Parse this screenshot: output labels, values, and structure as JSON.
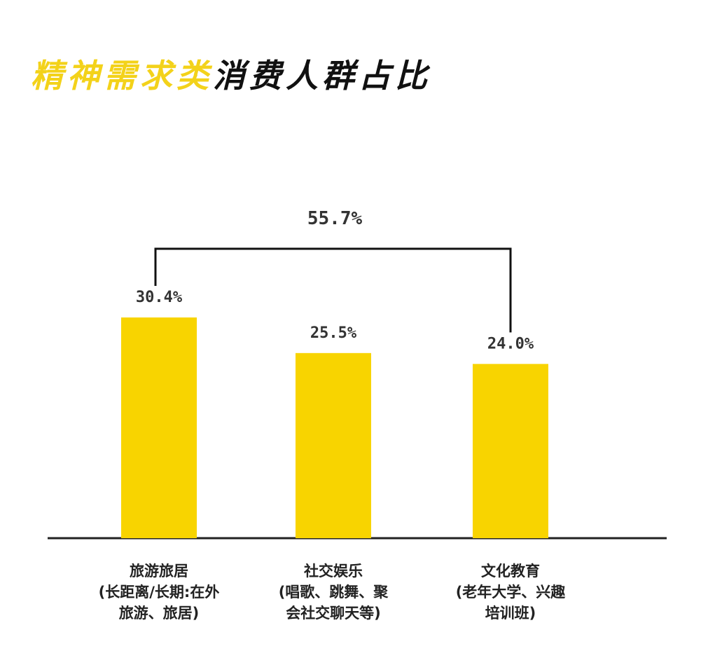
{
  "chart_data": {
    "type": "bar",
    "title": {
      "highlight": "精神需求类",
      "rest": "消费人群占比"
    },
    "categories": [
      "旅游旅居\n(长距离/长期:在外\n旅游、旅居)",
      "社交娱乐\n(唱歌、跳舞、聚\n会社交聊天等)",
      "文化教育\n(老年大学、兴趣\n培训班)"
    ],
    "values": [
      30.4,
      25.5,
      24.0
    ],
    "value_labels": [
      "30.4%",
      "25.5%",
      "24.0%"
    ],
    "color": "#f8d400",
    "annotation": "55.7%"
  }
}
